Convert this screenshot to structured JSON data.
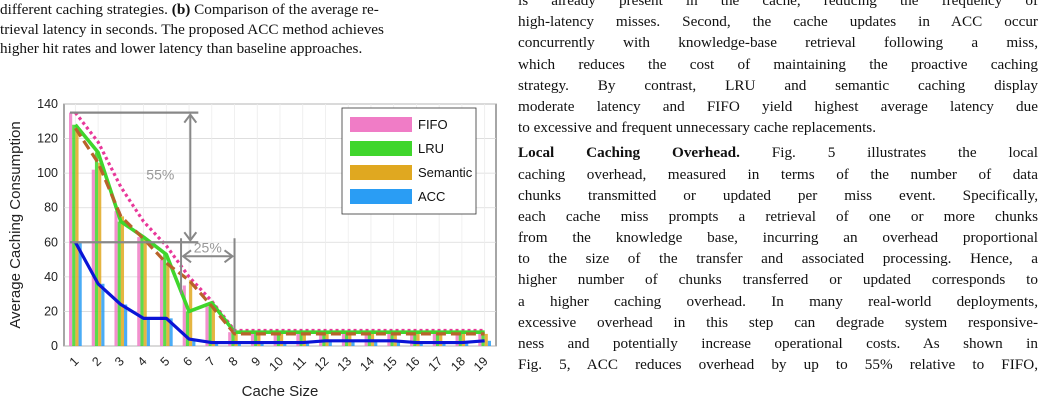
{
  "caption": {
    "lines": [
      "different caching strategies. (b) Comparison of the average re-",
      "trieval latency in seconds. The proposed ACC method achieves",
      "higher hit rates and lower latency than baseline approaches."
    ],
    "bold_token": "(b)"
  },
  "right_text": {
    "para1_lines": [
      "is already present in the cache, reducing the frequency of",
      "high-latency misses. Second, the cache updates in ACC occur",
      "concurrently with knowledge-base retrieval following a miss,",
      "which reduces the cost of maintaining the proactive caching",
      "strategy. By contrast, LRU and semantic caching display",
      "moderate latency and FIFO yield highest average latency due",
      "to excessive and frequent unnecessary cache replacements."
    ],
    "para2_heading": "Local Caching Overhead.",
    "para2_first_rest": " Fig. 5 illustrates the local",
    "para2_lines": [
      "caching overhead, measured in terms of the number of data",
      "chunks transmitted or updated per miss event. Specifically,",
      "each cache miss prompts a retrieval of one or more chunks",
      "from the knowledge base, incurring an overhead proportional",
      "to the size of the transfer and associated processing. Hence, a",
      "higher number of chunks transferred or updated corresponds to",
      "a higher caching overhead. In many real-world deployments,",
      "excessive overhead in this step can degrade system responsive-",
      "ness and potentially increase operational costs. As shown in",
      "Fig. 5, ACC reduces overhead by up to 55% relative to FIFO,"
    ]
  },
  "colors": {
    "FIFO": "#f07cc6",
    "LRU": "#3fd62c",
    "Semantic": "#e0a820",
    "ACC": "#2a9df4",
    "FIFO_line": "#e8389a",
    "LRU_line": "#3fd62c",
    "Semantic_line": "#b8632a",
    "ACC_line": "#0a14d6",
    "annotation": "#888888"
  },
  "chart_data": {
    "type": "bar",
    "xlabel": "Cache Size",
    "ylabel": "Average Caching Consumption",
    "ylim": [
      0,
      140
    ],
    "yticks": [
      0,
      20,
      40,
      60,
      80,
      100,
      120,
      140
    ],
    "categories": [
      "1",
      "2",
      "3",
      "4",
      "5",
      "6",
      "7",
      "8",
      "9",
      "10",
      "11",
      "12",
      "13",
      "14",
      "15",
      "16",
      "17",
      "18",
      "19"
    ],
    "grid": true,
    "legend_position": "top-right",
    "series": [
      {
        "name": "FIFO",
        "values": [
          135,
          102,
          78,
          63,
          50,
          35,
          23,
          8,
          8,
          8,
          8,
          8,
          8,
          8,
          8,
          8,
          8,
          8,
          8
        ]
      },
      {
        "name": "LRU",
        "values": [
          128,
          112,
          72,
          63,
          53,
          20,
          25,
          8,
          8,
          8,
          8,
          8,
          8,
          8,
          8,
          8,
          8,
          8,
          8
        ]
      },
      {
        "name": "Semantic",
        "values": [
          126,
          106,
          75,
          62,
          48,
          38,
          23,
          7,
          7,
          7,
          7,
          7,
          7,
          7,
          7,
          7,
          7,
          7,
          7
        ]
      },
      {
        "name": "ACC",
        "values": [
          60,
          36,
          24,
          16,
          16,
          4,
          2,
          2,
          2,
          2,
          2,
          3,
          3,
          3,
          3,
          2,
          2,
          2,
          3
        ]
      }
    ],
    "fifo_trend": [
      135,
      118,
      92,
      72,
      58,
      40,
      26,
      9,
      9,
      9,
      9,
      9,
      9,
      9,
      9,
      9,
      9,
      9,
      9
    ],
    "annotations": [
      {
        "label": "55%",
        "from_value": 135,
        "to_value": 60,
        "x_category": "4"
      },
      {
        "label": "25%",
        "from_category": "5",
        "to_category": "8",
        "at_value": 60
      }
    ]
  }
}
